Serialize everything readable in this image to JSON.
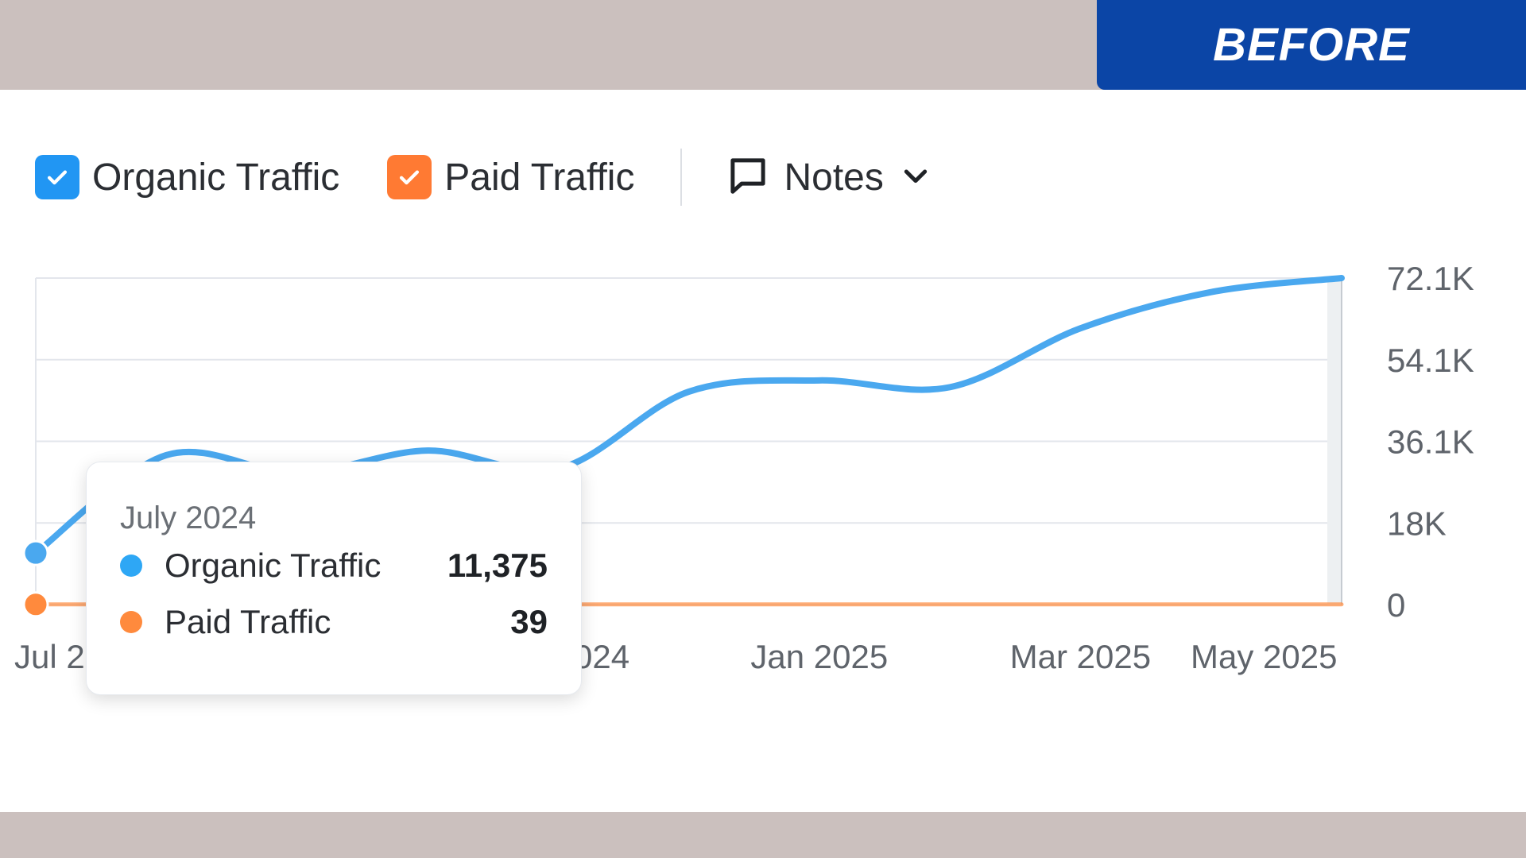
{
  "badge": {
    "label": "BEFORE"
  },
  "legend": {
    "organic_label": "Organic Traffic",
    "paid_label": "Paid Traffic",
    "notes_label": "Notes"
  },
  "colors": {
    "organic": "#4aa8ef",
    "paid": "#ff8a3d",
    "organic_checkbox": "#2196f3",
    "paid_checkbox": "#ff7a33",
    "badge": "#0b45a6"
  },
  "tooltip": {
    "date": "July 2024",
    "rows": [
      {
        "label": "Organic Traffic",
        "value": "11,375"
      },
      {
        "label": "Paid Traffic",
        "value": "39"
      }
    ]
  },
  "chart_data": {
    "type": "line",
    "y_ticks": [
      "0",
      "18K",
      "36.1K",
      "54.1K",
      "72.1K"
    ],
    "x_tick_labels": [
      "Jul 2024",
      "Nov 2024",
      "Jan 2025",
      "Mar 2025",
      "May 2025"
    ],
    "ylim": [
      0,
      72100
    ],
    "grid": true,
    "y_axis_side": "right",
    "series": [
      {
        "name": "Organic Traffic",
        "x": [
          "Jul 2024",
          "Aug 2024",
          "Sep 2024",
          "Oct 2024",
          "Nov 2024",
          "Dec 2024",
          "Jan 2025",
          "Feb 2025",
          "Mar 2025",
          "Apr 2025",
          "May 2025"
        ],
        "values": [
          11375,
          33000,
          29000,
          34000,
          30000,
          47000,
          49500,
          48000,
          61000,
          69000,
          72100
        ]
      },
      {
        "name": "Paid Traffic",
        "x": [
          "Jul 2024",
          "Aug 2024",
          "Sep 2024",
          "Oct 2024",
          "Nov 2024",
          "Dec 2024",
          "Jan 2025",
          "Feb 2025",
          "Mar 2025",
          "Apr 2025",
          "May 2025"
        ],
        "values": [
          39,
          40,
          38,
          42,
          40,
          41,
          39,
          40,
          42,
          41,
          40
        ]
      }
    ]
  }
}
